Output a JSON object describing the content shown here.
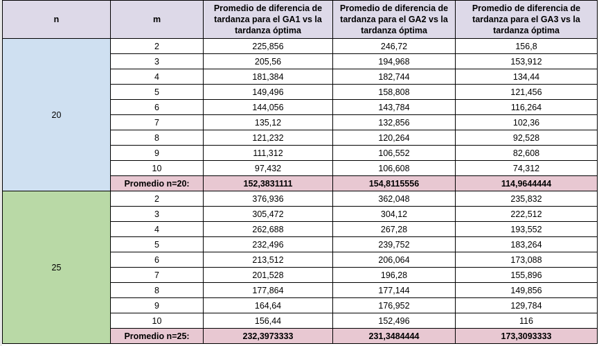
{
  "headers": {
    "n": "n",
    "m": "m",
    "ga1": "Promedio de diferencia de tardanza para el GA1 vs la tardanza óptima",
    "ga2": "Promedio de diferencia de tardanza para el GA2 vs la tardanza óptima",
    "ga3": "Promedio de diferencia de tardanza para el GA3 vs la tardanza óptima"
  },
  "groups": [
    {
      "n": "20",
      "rows": [
        {
          "m": "2",
          "ga1": "225,856",
          "ga2": "246,72",
          "ga3": "156,8"
        },
        {
          "m": "3",
          "ga1": "205,56",
          "ga2": "194,968",
          "ga3": "153,912"
        },
        {
          "m": "4",
          "ga1": "181,384",
          "ga2": "182,744",
          "ga3": "134,44"
        },
        {
          "m": "5",
          "ga1": "149,496",
          "ga2": "158,808",
          "ga3": "121,456"
        },
        {
          "m": "6",
          "ga1": "144,056",
          "ga2": "143,784",
          "ga3": "116,264"
        },
        {
          "m": "7",
          "ga1": "135,12",
          "ga2": "132,856",
          "ga3": "102,36"
        },
        {
          "m": "8",
          "ga1": "121,232",
          "ga2": "120,264",
          "ga3": "92,528"
        },
        {
          "m": "9",
          "ga1": "111,312",
          "ga2": "106,552",
          "ga3": "82,608"
        },
        {
          "m": "10",
          "ga1": "97,432",
          "ga2": "106,608",
          "ga3": "74,312"
        }
      ],
      "average": {
        "label": "Promedio n=20:",
        "ga1": "152,3831111",
        "ga2": "154,8115556",
        "ga3": "114,9644444"
      }
    },
    {
      "n": "25",
      "rows": [
        {
          "m": "2",
          "ga1": "376,936",
          "ga2": "362,048",
          "ga3": "235,832"
        },
        {
          "m": "3",
          "ga1": "305,472",
          "ga2": "304,12",
          "ga3": "222,512"
        },
        {
          "m": "4",
          "ga1": "262,688",
          "ga2": "267,28",
          "ga3": "193,552"
        },
        {
          "m": "5",
          "ga1": "232,496",
          "ga2": "239,752",
          "ga3": "183,264"
        },
        {
          "m": "6",
          "ga1": "213,512",
          "ga2": "206,064",
          "ga3": "173,088"
        },
        {
          "m": "7",
          "ga1": "201,528",
          "ga2": "196,28",
          "ga3": "155,896"
        },
        {
          "m": "8",
          "ga1": "177,864",
          "ga2": "177,144",
          "ga3": "149,856"
        },
        {
          "m": "9",
          "ga1": "164,64",
          "ga2": "176,952",
          "ga3": "129,784"
        },
        {
          "m": "10",
          "ga1": "156,44",
          "ga2": "152,496",
          "ga3": "116"
        }
      ],
      "average": {
        "label": "Promedio n=25:",
        "ga1": "232,3973333",
        "ga2": "231,3484444",
        "ga3": "173,3093333"
      }
    }
  ],
  "colors": {
    "header_bg": "#ddd9e8",
    "n20_bg": "#cfe0f1",
    "n25_bg": "#b9d9a6",
    "average_bg": "#e8c8d2"
  }
}
